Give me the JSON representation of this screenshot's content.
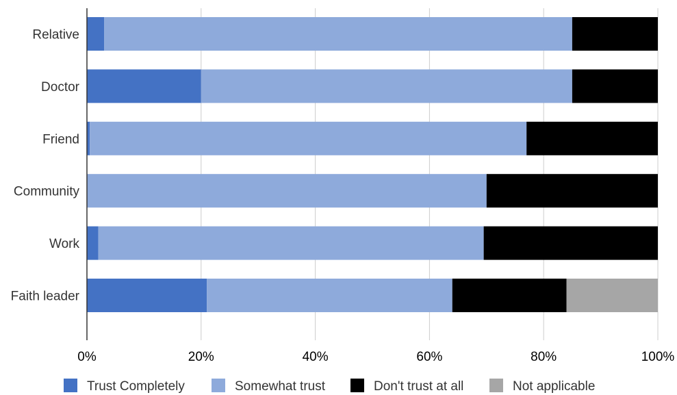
{
  "chart_data": {
    "type": "bar",
    "orientation": "horizontal",
    "stacked": true,
    "stack_mode": "percent",
    "categories": [
      "Relative",
      "Doctor",
      "Friend",
      "Community",
      "Work",
      "Faith leader"
    ],
    "series": [
      {
        "name": "Trust Completely",
        "color": "#4472c4",
        "values": [
          3,
          20,
          0.5,
          0,
          2,
          21
        ]
      },
      {
        "name": "Somewhat trust",
        "color": "#8eaadb",
        "values": [
          82,
          65,
          76.5,
          70,
          67.5,
          43
        ]
      },
      {
        "name": "Don't trust at all",
        "color": "#000000",
        "values": [
          15,
          15,
          23,
          30,
          30.5,
          20
        ]
      },
      {
        "name": "Not applicable",
        "color": "#a6a6a6",
        "values": [
          0,
          0,
          0,
          0,
          0,
          16
        ]
      }
    ],
    "xlim": [
      0,
      100
    ],
    "x_ticks": [
      "0%",
      "20%",
      "40%",
      "60%",
      "80%",
      "100%"
    ],
    "grid": true,
    "legend_position": "bottom",
    "title": "",
    "xlabel": "",
    "ylabel": ""
  }
}
